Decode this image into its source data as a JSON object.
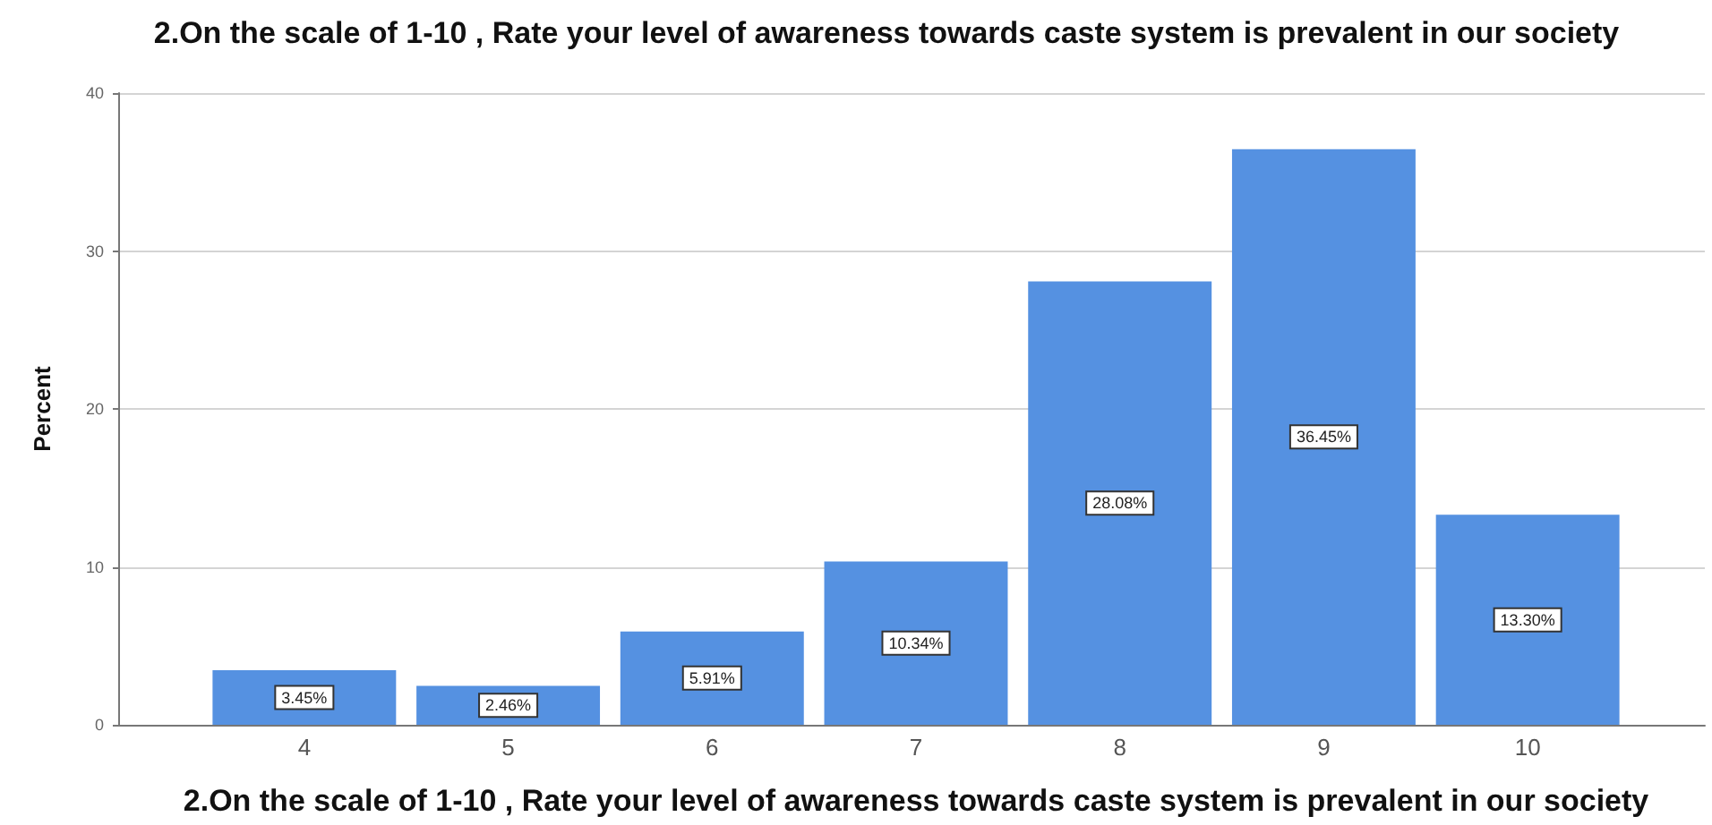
{
  "chart_data": {
    "type": "bar",
    "title": "2.On the scale of 1-10 , Rate your level of awareness towards caste system is prevalent in our society",
    "xlabel": "2.On the scale of 1-10 , Rate your level of awareness towards caste system is prevalent in our society",
    "ylabel": "Percent",
    "categories": [
      "4",
      "5",
      "6",
      "7",
      "8",
      "9",
      "10"
    ],
    "values": [
      3.45,
      2.46,
      5.91,
      10.34,
      28.08,
      36.45,
      13.3
    ],
    "value_labels": [
      "3.45%",
      "2.46%",
      "5.91%",
      "10.34%",
      "28.08%",
      "36.45%",
      "13.30%"
    ],
    "color": "#5591e1",
    "ylim": [
      0,
      40
    ],
    "yticks": [
      0,
      10,
      20,
      30,
      40
    ],
    "grid": "y"
  }
}
